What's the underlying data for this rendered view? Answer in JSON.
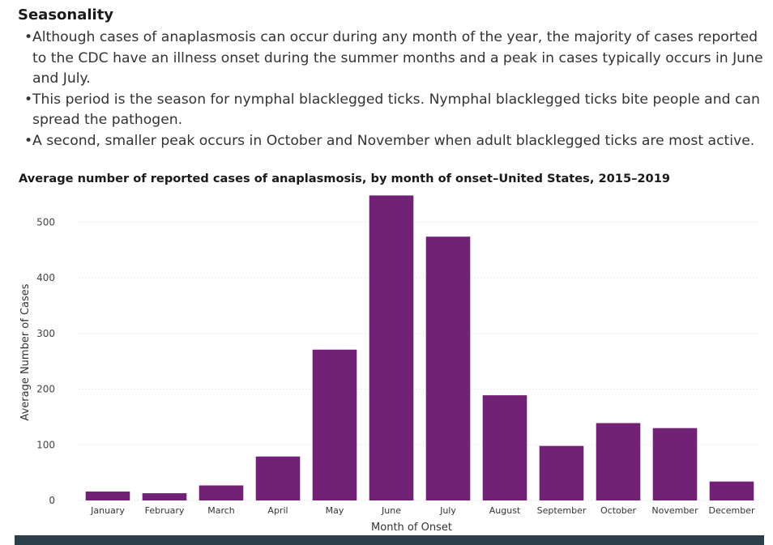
{
  "section": {
    "heading": "Seasonality",
    "bullets": [
      "Although cases of anaplasmosis can occur during any month of the year, the majority of cases reported to the CDC have an illness onset during the summer months and a peak in cases typically occurs in June and July.",
      "This period is the season for nymphal blacklegged ticks. Nymphal blacklegged ticks bite people and can spread the pathogen.",
      "A second, smaller peak occurs in October and November when adult blacklegged ticks are most active."
    ],
    "bullet_glyph": "•"
  },
  "chart_data": {
    "type": "bar",
    "title": "Average number of reported cases of anaplasmosis, by month of onset–United States, 2015–2019",
    "xlabel": "Month of Onset",
    "ylabel": "Average Number of Cases",
    "categories": [
      "January",
      "February",
      "March",
      "April",
      "May",
      "June",
      "July",
      "August",
      "September",
      "October",
      "November",
      "December"
    ],
    "values": [
      16,
      13,
      27,
      79,
      271,
      548,
      474,
      189,
      98,
      139,
      130,
      34
    ],
    "ylim": [
      0,
      550
    ],
    "yticks": [
      0,
      100,
      200,
      300,
      400,
      500
    ],
    "grid": true,
    "bar_color": "#722274"
  },
  "colors": {
    "footer_bar": "#2a3f48",
    "grid": "#dddddd"
  }
}
